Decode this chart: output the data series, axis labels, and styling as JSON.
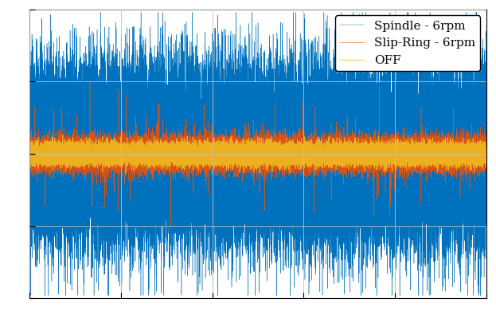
{
  "title": "",
  "xlabel": "",
  "ylabel": "",
  "legend": [
    "Spindle - 6rpm",
    "Slip-Ring - 6rpm",
    "OFF"
  ],
  "colors": [
    "#0072BD",
    "#D95319",
    "#EDB120"
  ],
  "ylim": [
    -1.0,
    1.0
  ],
  "xlim": [
    0,
    1
  ],
  "n_points": 50000,
  "spindle_std": 0.3,
  "slipring_std": 0.055,
  "off_std": 0.035,
  "background_color": "#ffffff",
  "grid": true,
  "legend_loc": "upper right",
  "figsize": [
    6.23,
    3.94
  ],
  "dpi": 100
}
